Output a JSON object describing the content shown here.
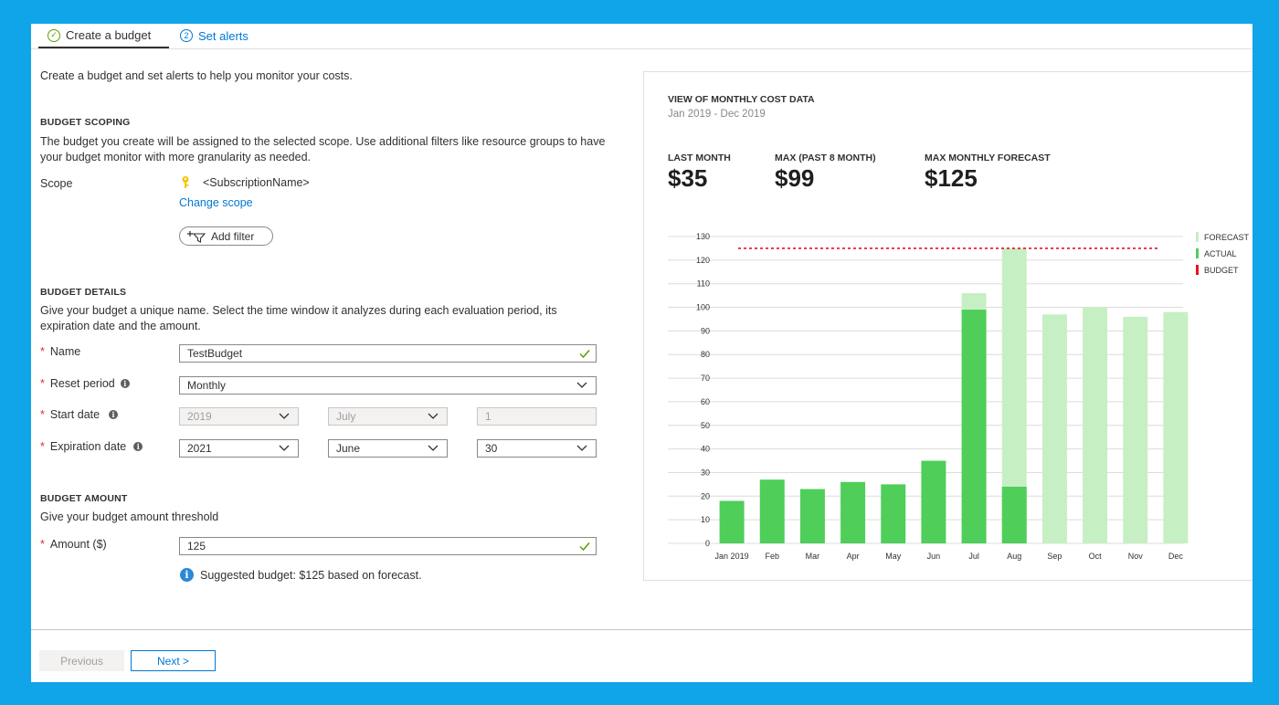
{
  "tabs": [
    {
      "label": "Create a budget",
      "badge": "",
      "state": "completed"
    },
    {
      "label": "Set alerts",
      "badge": "2",
      "state": "inactive"
    }
  ],
  "intro": "Create a budget and set alerts to help you monitor your costs.",
  "scoping": {
    "heading": "BUDGET SCOPING",
    "description": "The budget you create will be assigned to the selected scope. Use additional filters like resource groups to have your budget monitor with more granularity as needed.",
    "scope_label": "Scope",
    "scope_value": "<SubscriptionName>",
    "change_scope": "Change scope",
    "add_filter": "Add filter"
  },
  "details": {
    "heading": "BUDGET DETAILS",
    "description": "Give your budget a unique name. Select the time window it analyzes during each evaluation period, its expiration date and the amount.",
    "name_label": "Name",
    "name_value": "TestBudget",
    "reset_label": "Reset period",
    "reset_value": "Monthly",
    "start_label": "Start date",
    "start_year": "2019",
    "start_month": "July",
    "start_day": "1",
    "exp_label": "Expiration date",
    "exp_year": "2021",
    "exp_month": "June",
    "exp_day": "30"
  },
  "amount": {
    "heading": "BUDGET AMOUNT",
    "description": "Give your budget amount threshold",
    "amount_label": "Amount ($)",
    "amount_value": "125",
    "suggestion": "Suggested budget: $125 based on forecast."
  },
  "footer": {
    "previous": "Previous",
    "next": "Next >"
  },
  "panel": {
    "title": "VIEW OF MONTHLY COST DATA",
    "range": "Jan 2019 - Dec 2019",
    "kpis": [
      {
        "label": "LAST MONTH",
        "value": "$35"
      },
      {
        "label": "MAX (PAST 8 MONTH)",
        "value": "$99"
      },
      {
        "label": "MAX MONTHLY FORECAST",
        "value": "$125"
      }
    ],
    "legend": [
      {
        "label": "FORECAST",
        "color": "#c7efc4"
      },
      {
        "label": "ACTUAL",
        "color": "#4fce5a"
      },
      {
        "label": "BUDGET",
        "color": "#e81123"
      }
    ]
  },
  "colors": {
    "background": "#10a4e8",
    "accent": "#0078d4",
    "actual": "#4fce5a",
    "forecast": "#c7efc4",
    "budget": "#e81123",
    "success": "#57a300"
  },
  "chart_data": {
    "type": "bar",
    "title": "VIEW OF MONTHLY COST DATA",
    "categories": [
      "Jan 2019",
      "Feb",
      "Mar",
      "Apr",
      "May",
      "Jun",
      "Jul",
      "Aug",
      "Sep",
      "Oct",
      "Nov",
      "Dec"
    ],
    "series": [
      {
        "name": "ACTUAL",
        "values": [
          18,
          27,
          23,
          26,
          25,
          35,
          99,
          24,
          null,
          null,
          null,
          null
        ]
      },
      {
        "name": "FORECAST",
        "values": [
          null,
          null,
          null,
          null,
          null,
          null,
          106,
          125,
          97,
          100,
          96,
          98
        ]
      }
    ],
    "budget_line": 125,
    "yticks": [
      0,
      10,
      20,
      30,
      40,
      50,
      60,
      70,
      80,
      90,
      100,
      110,
      120,
      130
    ],
    "ylim": [
      0,
      130
    ],
    "grid": true,
    "legend_position": "right"
  }
}
